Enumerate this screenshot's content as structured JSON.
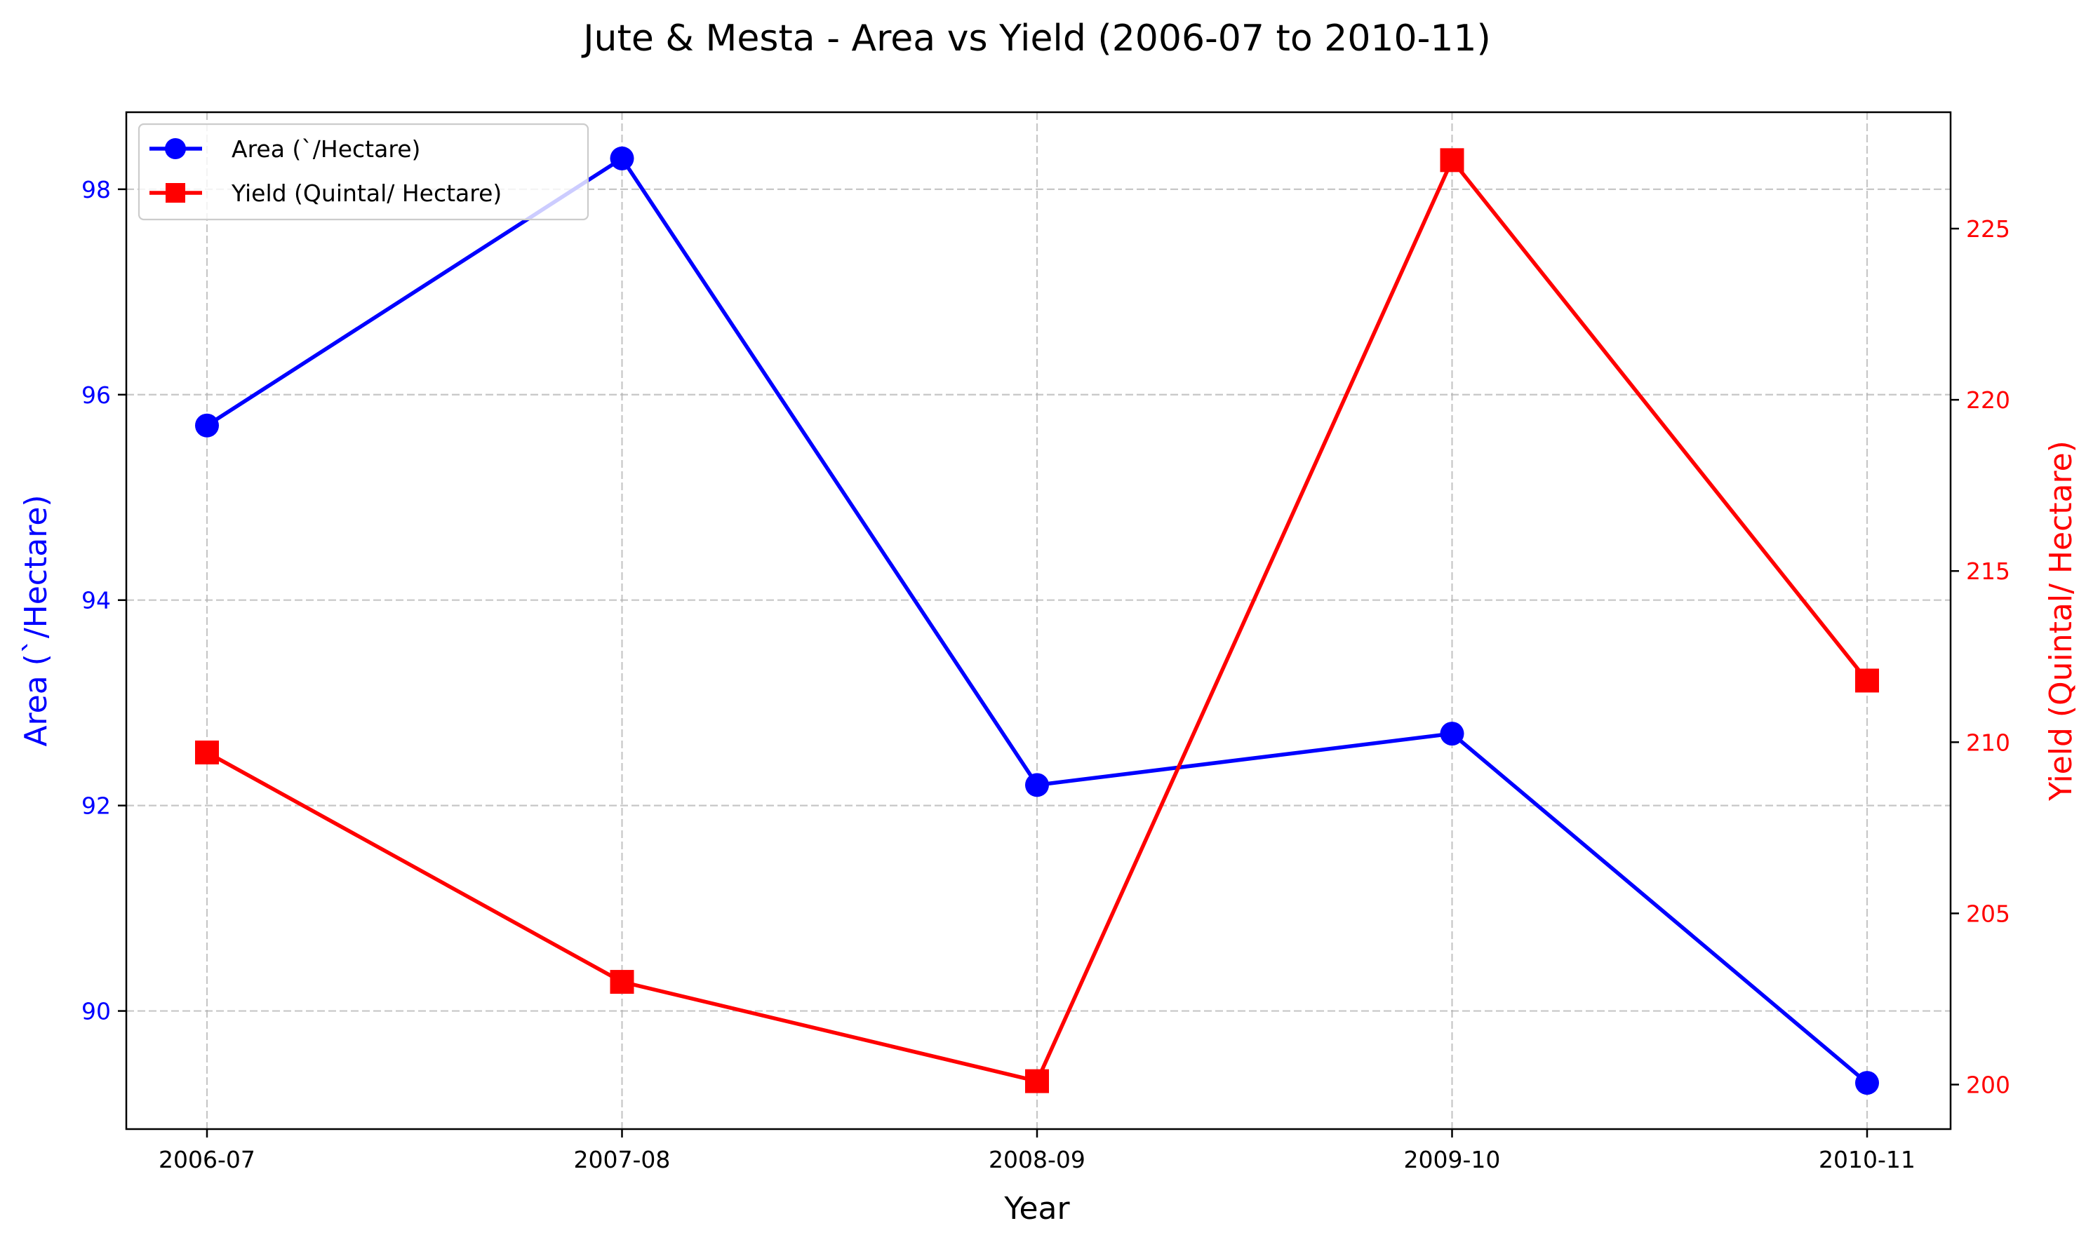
{
  "chart_data": {
    "type": "line",
    "title": "Jute & Mesta - Area vs Yield (2006-07 to 2010-11)",
    "xlabel": "Year",
    "categories": [
      "2006-07",
      "2007-08",
      "2008-09",
      "2009-10",
      "2010-11"
    ],
    "y_left": {
      "label": "Area (`/Hectare)",
      "color": "#0000ff",
      "ylim": [
        88.85,
        98.75
      ],
      "ticks": [
        90,
        92,
        94,
        96,
        98
      ]
    },
    "y_right": {
      "label": "Yield (Quintal/ Hectare)",
      "color": "#ff0000",
      "ylim": [
        198.7,
        228.4
      ],
      "ticks": [
        200,
        205,
        210,
        215,
        220,
        225
      ]
    },
    "series": [
      {
        "name": "Area (`/Hectare)",
        "axis": "left",
        "color": "#0000ff",
        "marker": "circle",
        "values": [
          95.7,
          98.3,
          92.2,
          92.7,
          89.3
        ]
      },
      {
        "name": "Yield (Quintal/ Hectare)",
        "axis": "right",
        "color": "#ff0000",
        "marker": "square",
        "values": [
          209.7,
          203.0,
          200.1,
          227.0,
          211.8
        ]
      }
    ],
    "grid": true,
    "legend_position": "top-left"
  }
}
